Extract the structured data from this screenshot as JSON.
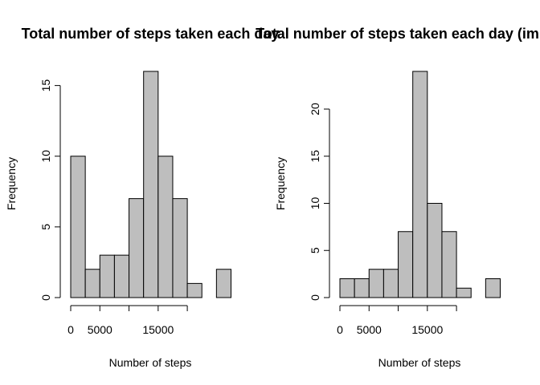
{
  "chart_data": [
    {
      "type": "bar",
      "title": "Total number of steps taken each day",
      "xlabel": "Number of steps",
      "ylabel": "Frequency",
      "bin_width": 2500,
      "x_start": 0,
      "bins": [
        {
          "start": 0,
          "end": 2500,
          "count": 10
        },
        {
          "start": 2500,
          "end": 5000,
          "count": 2
        },
        {
          "start": 5000,
          "end": 7500,
          "count": 3
        },
        {
          "start": 7500,
          "end": 10000,
          "count": 3
        },
        {
          "start": 10000,
          "end": 12500,
          "count": 7
        },
        {
          "start": 12500,
          "end": 15000,
          "count": 16
        },
        {
          "start": 15000,
          "end": 17500,
          "count": 10
        },
        {
          "start": 17500,
          "end": 20000,
          "count": 7
        },
        {
          "start": 20000,
          "end": 22500,
          "count": 1
        },
        {
          "start": 22500,
          "end": 25000,
          "count": 0
        },
        {
          "start": 25000,
          "end": 27500,
          "count": 2
        }
      ],
      "x_ticks": [
        0,
        5000,
        10000,
        15000,
        20000
      ],
      "x_tick_labels": [
        "0",
        "5000",
        "",
        "15000",
        ""
      ],
      "y_ticks": [
        0,
        5,
        10,
        15
      ],
      "ylim": [
        0,
        16
      ],
      "xlim": [
        0,
        27500
      ],
      "bar_color": "#bebebe",
      "grid": false
    },
    {
      "type": "bar",
      "title": "Total number of steps taken each day (imputed)",
      "xlabel": "Number of steps",
      "ylabel": "Frequency",
      "bin_width": 2500,
      "x_start": 0,
      "bins": [
        {
          "start": 0,
          "end": 2500,
          "count": 2
        },
        {
          "start": 2500,
          "end": 5000,
          "count": 2
        },
        {
          "start": 5000,
          "end": 7500,
          "count": 3
        },
        {
          "start": 7500,
          "end": 10000,
          "count": 3
        },
        {
          "start": 10000,
          "end": 12500,
          "count": 7
        },
        {
          "start": 12500,
          "end": 15000,
          "count": 24
        },
        {
          "start": 15000,
          "end": 17500,
          "count": 10
        },
        {
          "start": 17500,
          "end": 20000,
          "count": 7
        },
        {
          "start": 20000,
          "end": 22500,
          "count": 1
        },
        {
          "start": 22500,
          "end": 25000,
          "count": 0
        },
        {
          "start": 25000,
          "end": 27500,
          "count": 2
        }
      ],
      "x_ticks": [
        0,
        5000,
        10000,
        15000,
        20000
      ],
      "x_tick_labels": [
        "0",
        "5000",
        "",
        "15000",
        ""
      ],
      "y_ticks": [
        0,
        5,
        10,
        15,
        20
      ],
      "ylim": [
        0,
        24
      ],
      "xlim": [
        0,
        27500
      ],
      "bar_color": "#bebebe",
      "grid": false
    }
  ]
}
